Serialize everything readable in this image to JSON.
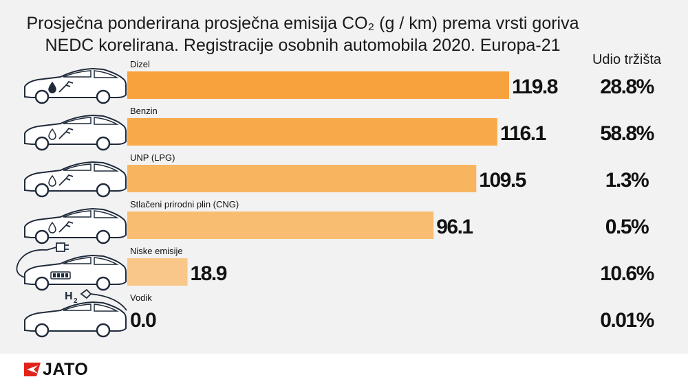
{
  "title_line1": "Prosječna ponderirana prosječna emisija CO₂ (g / km) prema vrsti goriva",
  "title_line2": "NEDC korelirana. Registracije osobnih automobila 2020. Europa-21",
  "share_header": "Udio tržišta",
  "brand": "JATO",
  "chart_data": {
    "type": "bar",
    "orientation": "horizontal",
    "title": "Prosječna ponderirana prosječna emisija CO₂ (g / km) prema vrsti goriva NEDC korelirana. Registracije osobnih automobila 2020. Europa-21",
    "categories": [
      "Dizel",
      "Benzin",
      "UNP (LPG)",
      "Stlačeni prirodni plin (CNG)",
      "Niske emisije",
      "Vodik"
    ],
    "values": [
      119.8,
      116.1,
      109.5,
      96.1,
      18.9,
      0.0
    ],
    "value_labels": [
      "119.8",
      "116.1",
      "109.5",
      "96.1",
      "18.9",
      "0.0"
    ],
    "market_share_header": "Udio tržišta",
    "market_share": [
      "28.8%",
      "58.8%",
      "1.3%",
      "0.5%",
      "10.6%",
      "0.01%"
    ],
    "market_share_values": [
      28.8,
      58.8,
      1.3,
      0.5,
      10.6,
      0.01
    ],
    "bar_colors": [
      "#f7a23c",
      "#f8aa4b",
      "#f8b55f",
      "#f8bd70",
      "#f9c78a",
      "#f9cf9a"
    ],
    "icons": [
      "car-diesel-icon",
      "car-petrol-icon",
      "car-lpg-icon",
      "car-cng-icon",
      "car-electric-plug-icon",
      "car-hydrogen-h2-icon"
    ],
    "xlim": [
      0,
      125
    ],
    "grid": false,
    "legend": "none"
  }
}
